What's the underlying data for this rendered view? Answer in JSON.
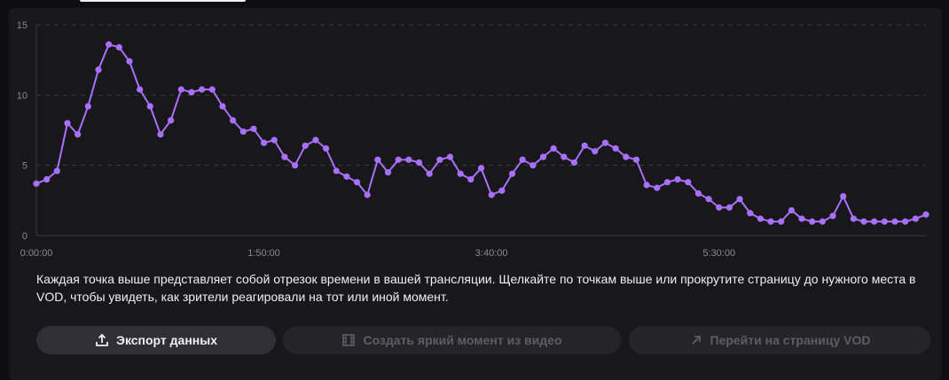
{
  "chart_data": {
    "type": "line",
    "title": "",
    "xlabel": "",
    "ylabel": "",
    "ylim": [
      0,
      15
    ],
    "yticks": [
      "0",
      "5",
      "10",
      "15"
    ],
    "xtick_labels": [
      "0:00:00",
      "1:50:00",
      "3:40:00",
      "5:30:00"
    ],
    "xtick_minutes": [
      0,
      110,
      220,
      330
    ],
    "interval_minutes": 5,
    "grid": true,
    "color": "#a970ff",
    "values": [
      3.7,
      4.0,
      4.6,
      8.0,
      7.2,
      9.2,
      11.8,
      13.6,
      13.4,
      12.4,
      10.4,
      9.2,
      7.2,
      8.2,
      10.4,
      10.2,
      10.4,
      10.4,
      9.2,
      8.2,
      7.4,
      7.6,
      6.6,
      6.8,
      5.6,
      5.0,
      6.4,
      6.8,
      6.2,
      4.6,
      4.2,
      3.8,
      2.9,
      5.4,
      4.5,
      5.4,
      5.4,
      5.2,
      4.4,
      5.4,
      5.6,
      4.4,
      4.0,
      4.8,
      2.9,
      3.2,
      4.4,
      5.4,
      5.0,
      5.6,
      6.2,
      5.6,
      5.2,
      6.4,
      6.0,
      6.6,
      6.2,
      5.6,
      5.4,
      3.6,
      3.4,
      3.8,
      4.0,
      3.8,
      3.0,
      2.6,
      2.0,
      2.0,
      2.6,
      1.6,
      1.2,
      1.0,
      1.0,
      1.8,
      1.2,
      1.0,
      1.0,
      1.4,
      2.8,
      1.2,
      1.0,
      1.0,
      1.0,
      1.0,
      1.0,
      1.2,
      1.5
    ]
  },
  "description": "Каждая точка выше представляет собой отрезок времени в вашей трансляции. Щелкайте по точкам выше или прокрутите страницу до нужного места в VOD, чтобы увидеть, как зрители реагировали на тот или иной момент.",
  "buttons": {
    "export": "Экспорт данных",
    "clip": "Создать яркий момент из видео",
    "vod": "Перейти на страницу VOD"
  }
}
